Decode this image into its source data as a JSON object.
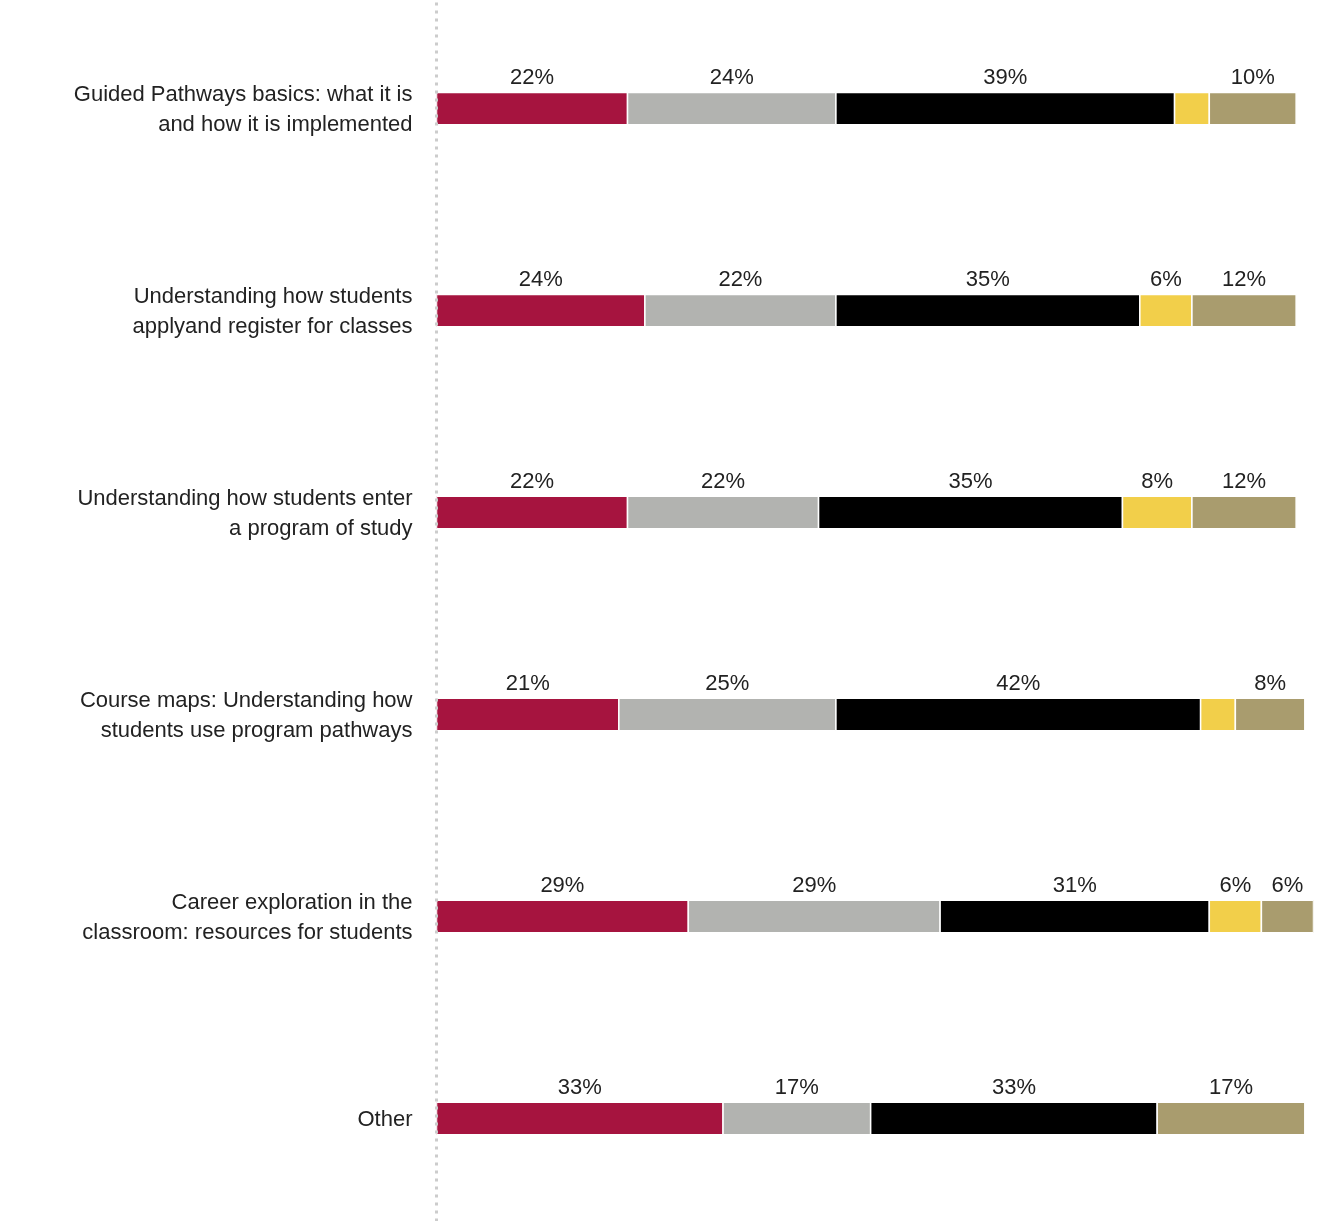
{
  "chart_data": {
    "type": "bar",
    "orientation": "horizontal",
    "stacked": true,
    "tick_labels": "y",
    "grid": false,
    "categories": [
      "Guided Pathways basics: what it is\nand how it is implemented",
      "Understanding how students\napplyand register for classes",
      "Understanding how students enter\na program of study",
      "Course maps: Understanding how\nstudents use program pathways",
      "Career exploration in the\nclassroom: resources for students",
      "Other"
    ],
    "series": [
      {
        "color": "#a6143f",
        "values": [
          22,
          24,
          22,
          21,
          29,
          33
        ],
        "value_labels": [
          "22%",
          "24%",
          "22%",
          "21%",
          "29%",
          "33%"
        ]
      },
      {
        "color": "#b2b3b0",
        "values": [
          24,
          22,
          22,
          25,
          29,
          17
        ],
        "value_labels": [
          "24%",
          "22%",
          "22%",
          "25%",
          "29%",
          "17%"
        ]
      },
      {
        "color": "#000000",
        "values": [
          39,
          35,
          35,
          42,
          31,
          33
        ],
        "value_labels": [
          "39%",
          "35%",
          "35%",
          "42%",
          "31%",
          "33%"
        ]
      },
      {
        "color": "#f2cf4a",
        "values": [
          4,
          6,
          8,
          4,
          6,
          null
        ],
        "value_labels": [
          null,
          "6%",
          "8%",
          null,
          "6%",
          null
        ]
      },
      {
        "color": "#a99c6e",
        "values": [
          10,
          12,
          12,
          8,
          6,
          17
        ],
        "value_labels": [
          "10%",
          "12%",
          "12%",
          "8%",
          "6%",
          "17%"
        ]
      }
    ]
  }
}
